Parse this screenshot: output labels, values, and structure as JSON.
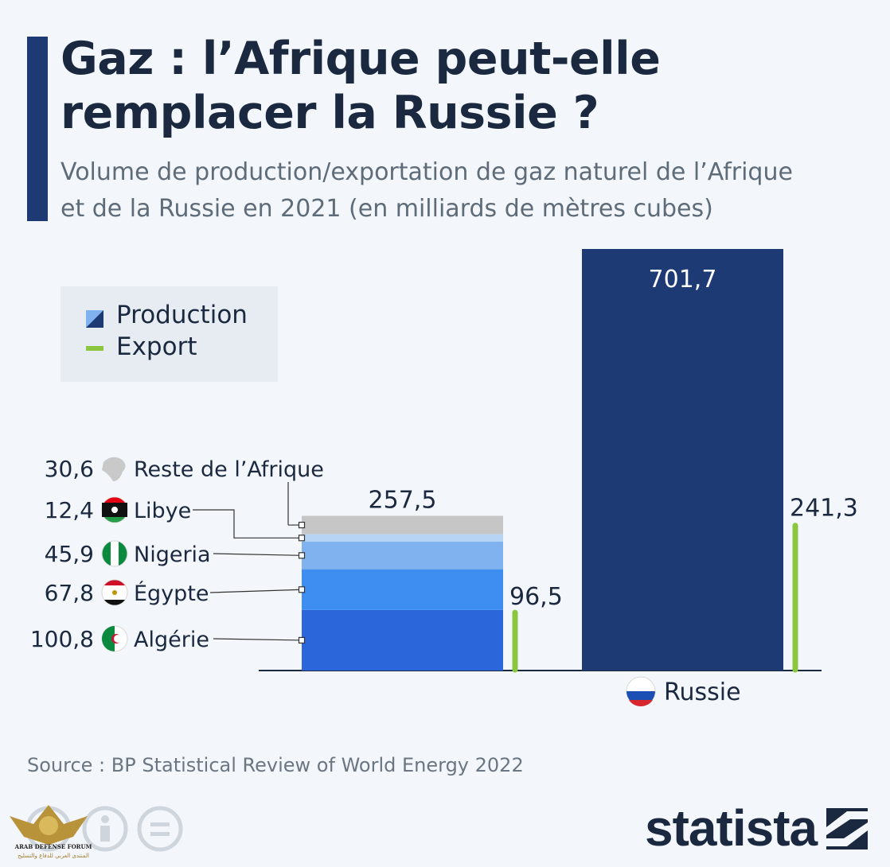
{
  "title_line1": "Gaz : l’Afrique peut-elle",
  "title_line2": "remplacer la Russie ?",
  "subtitle_line1": "Volume de production/exportation de gaz naturel de l’Afrique",
  "subtitle_line2": "et de la Russie en 2021 (en milliards de mètres cubes)",
  "legend": {
    "production_label": "Production",
    "export_label": "Export"
  },
  "source": "Source : BP Statistical Review of World Energy 2022",
  "brand": "statista",
  "watermark": {
    "line1": "ARAB DEFENSE FORUM",
    "line2": "المنتدى العربي للدفاع والتسليح"
  },
  "colors": {
    "accent": "#1d3a75",
    "russia_production": "#1d3a75",
    "export": "#8cc63f",
    "rest_of_africa": "#c6c6c6",
    "libya": "#b8d4f4",
    "nigeria": "#7fb2ee",
    "egypt": "#3d8ef0",
    "algeria": "#2b66da"
  },
  "chart_data": {
    "type": "bar",
    "title": "Gaz : l’Afrique peut-elle remplacer la Russie ?",
    "subtitle": "Volume de production/exportation de gaz naturel de l’Afrique et de la Russie en 2021 (en milliards de mètres cubes)",
    "unit": "milliards de mètres cubes",
    "ylim": [
      0,
      701.7
    ],
    "grid": false,
    "legend_position": "top-left",
    "series": [
      {
        "name": "Production",
        "icon": "production-swatch"
      },
      {
        "name": "Export",
        "icon": "export-line"
      }
    ],
    "africa": {
      "category": "",
      "production_total": 257.5,
      "production_total_label": "257,5",
      "export": 96.5,
      "export_label": "96,5",
      "segments": [
        {
          "name": "Algérie",
          "value": 100.8,
          "label": "100,8",
          "color": "#2b66da",
          "flag": "algeria-flag-icon"
        },
        {
          "name": "Égypte",
          "value": 67.8,
          "label": "67,8",
          "color": "#3d8ef0",
          "flag": "egypt-flag-icon"
        },
        {
          "name": "Nigeria",
          "value": 45.9,
          "label": "45,9",
          "color": "#7fb2ee",
          "flag": "nigeria-flag-icon"
        },
        {
          "name": "Libye",
          "value": 12.4,
          "label": "12,4",
          "color": "#b8d4f4",
          "flag": "libya-flag-icon"
        },
        {
          "name": "Reste de l’Afrique",
          "value": 30.6,
          "label": "30,6",
          "color": "#c6c6c6",
          "flag": "africa-map-icon"
        }
      ]
    },
    "russia": {
      "category": "Russie",
      "production": 701.7,
      "production_label": "701,7",
      "export": 241.3,
      "export_label": "241,3",
      "flag": "russia-flag-icon"
    }
  }
}
